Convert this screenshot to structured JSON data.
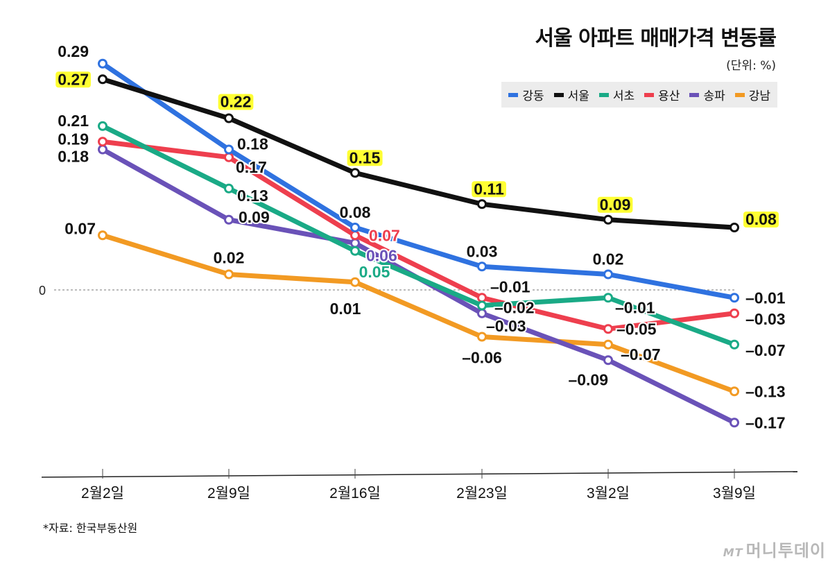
{
  "chart_data": {
    "type": "line",
    "title": "서울 아파트 매매가격 변동률",
    "unit_label": "(단위: %)",
    "categories": [
      "2월2일",
      "2월9일",
      "2월16일",
      "2월23일",
      "3월2일",
      "3월9일"
    ],
    "zero_label": "0",
    "ylim": [
      -0.22,
      0.3
    ],
    "grid": false,
    "legend_position": "top-right",
    "series": [
      {
        "key": "gangdong",
        "name": "강동",
        "color": "#2f72e0",
        "values": [
          0.29,
          0.18,
          0.08,
          0.03,
          0.02,
          -0.01
        ],
        "labels": [
          "0.29",
          "0.18",
          "0.08",
          "0.03",
          "0.02",
          "–0.01"
        ]
      },
      {
        "key": "seoul",
        "name": "서울",
        "color": "#111111",
        "values": [
          0.27,
          0.22,
          0.15,
          0.11,
          0.09,
          0.08
        ],
        "labels": [
          "0.27",
          "0.22",
          "0.15",
          "0.11",
          "0.09",
          "0.08"
        ]
      },
      {
        "key": "seocho",
        "name": "서초",
        "color": "#1aaa86",
        "values": [
          0.21,
          0.13,
          0.05,
          -0.02,
          -0.01,
          -0.07
        ],
        "labels": [
          "0.21",
          "0.13",
          "0.05",
          "–0.02",
          "–0.01",
          "–0.07"
        ]
      },
      {
        "key": "yongsan",
        "name": "용산",
        "color": "#ee3f4e",
        "values": [
          0.19,
          0.17,
          0.07,
          -0.01,
          -0.05,
          -0.03
        ],
        "labels": [
          "0.19",
          "0.17",
          "0.07",
          "–0.01",
          "–0.05",
          "–0.03"
        ]
      },
      {
        "key": "songpa",
        "name": "송파",
        "color": "#6a52b8",
        "values": [
          0.18,
          0.09,
          0.06,
          -0.03,
          -0.09,
          -0.17
        ],
        "labels": [
          "0.18",
          "0.09",
          "0.06",
          "–0.03",
          "–0.09",
          "–0.17"
        ]
      },
      {
        "key": "gangnam",
        "name": "강남",
        "color": "#f29a23",
        "values": [
          0.07,
          0.02,
          0.01,
          -0.06,
          -0.07,
          -0.13
        ],
        "labels": [
          "0.07",
          "0.02",
          "0.01",
          "–0.06",
          "–0.07",
          "–0.13"
        ]
      }
    ],
    "highlight_series": "seoul",
    "highlight_color": "#ffff33"
  },
  "source": "*자료: 한국부동산원",
  "logo": {
    "mark": "MT",
    "name": "머니투데이"
  }
}
